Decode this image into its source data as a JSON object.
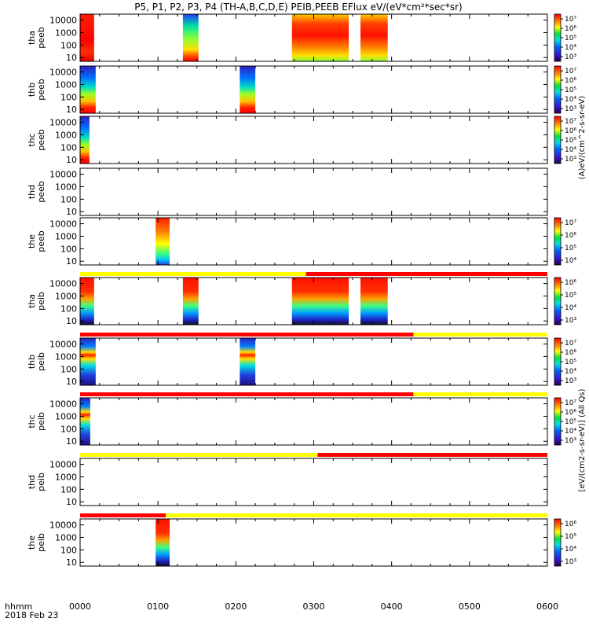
{
  "title": "P5, P1, P2, P3, P4 (TH-A,B,C,D,E) PEIB,PEEB EFlux eV/(eV*cm²*sec*sr)",
  "time_axis": {
    "label_line1": "hhmm",
    "label_line2": "2018 Feb 23",
    "ticks": [
      "0000",
      "0100",
      "0200",
      "0300",
      "0400",
      "0500",
      "0600"
    ]
  },
  "colorbar_labels": {
    "electron": "(A)eV/(cm^2-s-sr-eV)",
    "ion": "[eV/(cm2-s-sr-eV)] (All Qs)"
  },
  "chart_data": {
    "type": "heatmap",
    "x_unit": "hours since 2018-02-23 00:00 UT",
    "xlim": [
      0,
      6
    ],
    "y_scale": "log",
    "y_ticks": [
      "10",
      "100",
      "1000",
      "10000"
    ],
    "ylim": [
      5,
      30000
    ],
    "colormap": "rainbow (purple-blue-green-yellow-red)",
    "panels": [
      {
        "label_line1": "tha",
        "label_line2": "peeb",
        "colorbar_ticks": [
          "10³",
          "10⁴",
          "10⁵",
          "10⁶",
          "10⁷"
        ],
        "segments": [
          {
            "start": 0.0,
            "end": 0.18,
            "profile": "red_high"
          },
          {
            "start": 1.32,
            "end": 1.52,
            "profile": "mixed"
          },
          {
            "start": 2.72,
            "end": 3.45,
            "profile": "red_dominant"
          },
          {
            "start": 3.6,
            "end": 3.95,
            "profile": "red_dominant"
          }
        ]
      },
      {
        "label_line1": "thb",
        "label_line2": "peeb",
        "colorbar_ticks": [
          "10³",
          "10⁴",
          "10⁵",
          "10⁶",
          "10⁷"
        ],
        "segments": [
          {
            "start": 0.0,
            "end": 0.2,
            "profile": "electron_grad"
          },
          {
            "start": 2.05,
            "end": 2.25,
            "profile": "electron_grad"
          }
        ]
      },
      {
        "label_line1": "thc",
        "label_line2": "peeb",
        "colorbar_ticks": [
          "10³",
          "10⁴",
          "10⁵",
          "10⁶",
          "10⁷"
        ],
        "segments": [
          {
            "start": 0.0,
            "end": 0.12,
            "profile": "electron_grad"
          }
        ]
      },
      {
        "label_line1": "thd",
        "label_line2": "peeb",
        "colorbar_ticks": [],
        "segments": []
      },
      {
        "label_line1": "the",
        "label_line2": "peeb",
        "colorbar_ticks": [
          "10⁴",
          "10⁵",
          "10⁶",
          "10⁷"
        ],
        "segments": [
          {
            "start": 0.97,
            "end": 1.15,
            "profile": "the_grad"
          }
        ]
      },
      {
        "label_line1": "tha",
        "label_line2": "peib",
        "colorbar_ticks": [
          "10³",
          "10⁴",
          "10⁵",
          "10⁶"
        ],
        "segments": [
          {
            "start": 0.0,
            "end": 0.18,
            "profile": "ion_high"
          },
          {
            "start": 1.32,
            "end": 1.52,
            "profile": "ion_high"
          },
          {
            "start": 2.72,
            "end": 3.45,
            "profile": "ion_high"
          },
          {
            "start": 3.6,
            "end": 3.95,
            "profile": "ion_high"
          }
        ]
      },
      {
        "label_line1": "thb",
        "label_line2": "peib",
        "colorbar_ticks": [
          "10³",
          "10⁴",
          "10⁵",
          "10⁶",
          "10⁷"
        ],
        "segments": [
          {
            "start": 0.0,
            "end": 0.2,
            "profile": "ion_band"
          },
          {
            "start": 2.05,
            "end": 2.25,
            "profile": "ion_band"
          }
        ]
      },
      {
        "label_line1": "thc",
        "label_line2": "peib",
        "colorbar_ticks": [
          "10³",
          "10⁴",
          "10⁵",
          "10⁶",
          "10⁷"
        ],
        "segments": [
          {
            "start": 0.0,
            "end": 0.13,
            "profile": "ion_band"
          }
        ]
      },
      {
        "label_line1": "thd",
        "label_line2": "peib",
        "colorbar_ticks": [],
        "segments": []
      },
      {
        "label_line1": "the",
        "label_line2": "peib",
        "colorbar_ticks": [
          "10³",
          "10⁴",
          "10⁵",
          "10⁶"
        ],
        "segments": [
          {
            "start": 0.97,
            "end": 1.15,
            "profile": "ion_high"
          }
        ]
      }
    ],
    "mode_bars": [
      {
        "above_panel": 5,
        "segments": [
          {
            "start": 0.0,
            "end": 2.9,
            "color": "#ffff00"
          },
          {
            "start": 2.9,
            "end": 6.0,
            "color": "#ff0000"
          }
        ]
      },
      {
        "above_panel": 6,
        "segments": [
          {
            "start": 0.0,
            "end": 4.28,
            "color": "#ff0000"
          },
          {
            "start": 4.28,
            "end": 6.0,
            "color": "#ffff00"
          }
        ]
      },
      {
        "above_panel": 7,
        "segments": [
          {
            "start": 0.0,
            "end": 4.28,
            "color": "#ff0000"
          },
          {
            "start": 4.28,
            "end": 6.0,
            "color": "#ffff00"
          }
        ]
      },
      {
        "above_panel": 8,
        "segments": [
          {
            "start": 0.0,
            "end": 3.05,
            "color": "#ffff00"
          },
          {
            "start": 3.05,
            "end": 6.0,
            "color": "#ff0000"
          }
        ]
      },
      {
        "above_panel": 9,
        "segments": [
          {
            "start": 0.0,
            "end": 1.1,
            "color": "#ff0000"
          },
          {
            "start": 1.1,
            "end": 6.0,
            "color": "#ffff00"
          }
        ]
      }
    ]
  }
}
